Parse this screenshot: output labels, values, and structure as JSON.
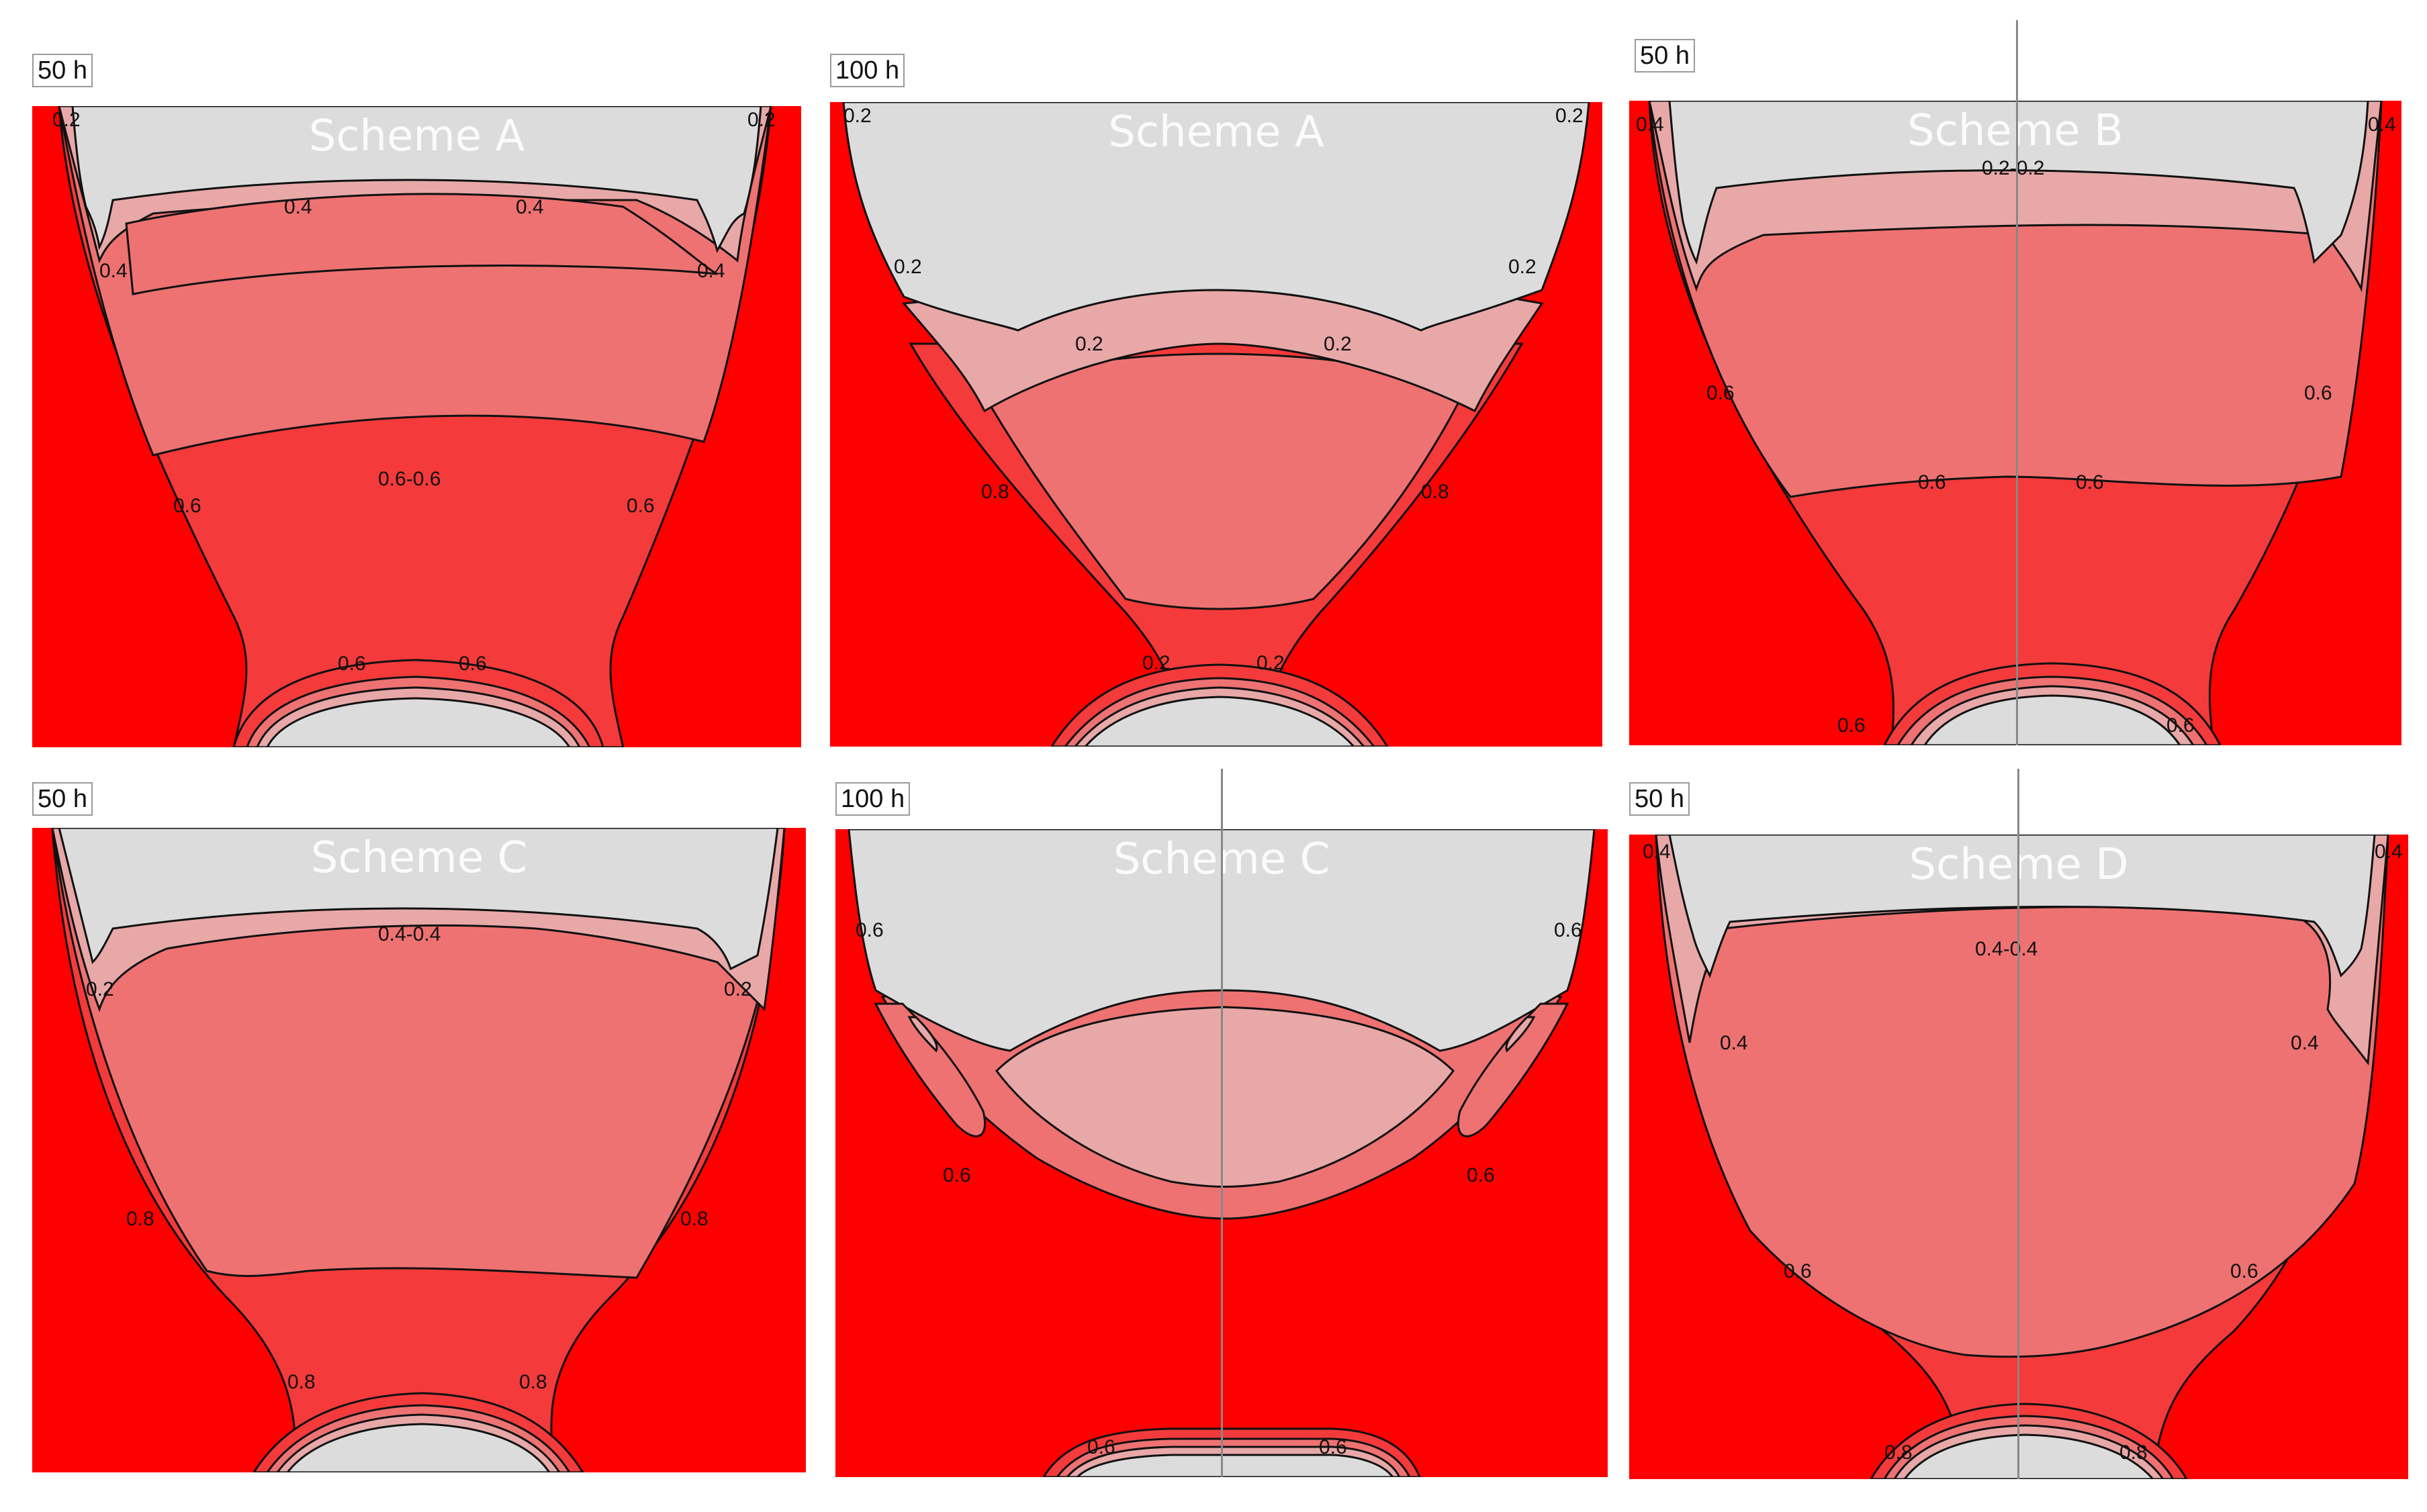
{
  "colors": {
    "band_1": "#dcdcdc",
    "band_2": "#e8a8a8",
    "band_3": "#ee7272",
    "band_4": "#f43a3a",
    "band_5": "#ff0000",
    "contour_line": "#111111",
    "divider_line": "#888888"
  },
  "panels": [
    {
      "id": "p1",
      "time": "50 h",
      "scheme": "Scheme A",
      "labels": [
        "0.2",
        "0.2",
        "0.4",
        "0.4",
        "0.4",
        "0.4",
        "0.6-0.6",
        "0.6",
        "0.6",
        "0.6",
        "0.6"
      ]
    },
    {
      "id": "p2",
      "time": "100 h",
      "scheme": "Scheme A",
      "labels": [
        "0.2",
        "0.2",
        "0.2",
        "0.2",
        "0.2",
        "0.2",
        "0.8",
        "0.8",
        "0.2",
        "0.2"
      ]
    },
    {
      "id": "p3",
      "time": "50 h",
      "scheme": "Scheme B",
      "labels": [
        "0.4",
        "0.4",
        "0.2-0.2",
        "0.6",
        "0.6",
        "0.6",
        "0.6",
        "0.6",
        "0.6"
      ]
    },
    {
      "id": "p4",
      "time": "50 h",
      "scheme": "Scheme C",
      "labels": [
        "0.4-0.4",
        "0.2",
        "0.2",
        "0.8",
        "0.8",
        "0.8",
        "0.8"
      ]
    },
    {
      "id": "p5",
      "time": "100 h",
      "scheme": "Scheme C",
      "labels": [
        "0.6",
        "0.6",
        "0.6",
        "0.6",
        "0.6",
        "0.6"
      ]
    },
    {
      "id": "p6",
      "time": "50 h",
      "scheme": "Scheme D",
      "labels": [
        "0.4",
        "0.4",
        "0.4-0.4",
        "0.4",
        "0.4",
        "0.6",
        "0.6",
        "0.8",
        "0.8"
      ]
    }
  ]
}
